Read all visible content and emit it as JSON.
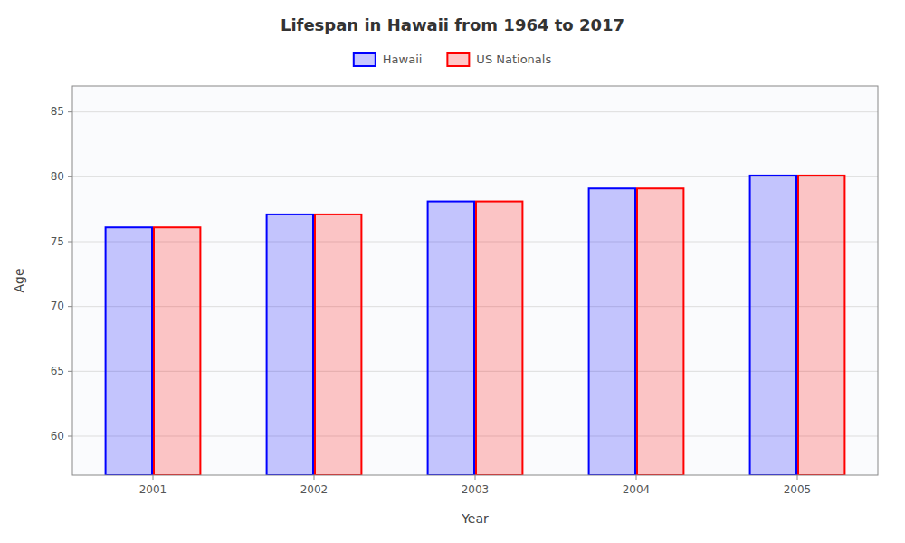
{
  "chart_data": {
    "type": "bar",
    "title": "Lifespan in Hawaii from 1964 to 2017",
    "xlabel": "Year",
    "ylabel": "Age",
    "categories": [
      "2001",
      "2002",
      "2003",
      "2004",
      "2005"
    ],
    "series": [
      {
        "name": "Hawaii",
        "color": "#0000ff",
        "values": [
          76.1,
          77.1,
          78.1,
          79.1,
          80.1
        ]
      },
      {
        "name": "US Nationals",
        "color": "#ff0000",
        "values": [
          76.1,
          77.1,
          78.1,
          79.1,
          80.1
        ]
      }
    ],
    "ylim": [
      57,
      87
    ],
    "yticks": [
      60,
      65,
      70,
      75,
      80,
      85
    ],
    "grid": true,
    "legend": "top"
  }
}
